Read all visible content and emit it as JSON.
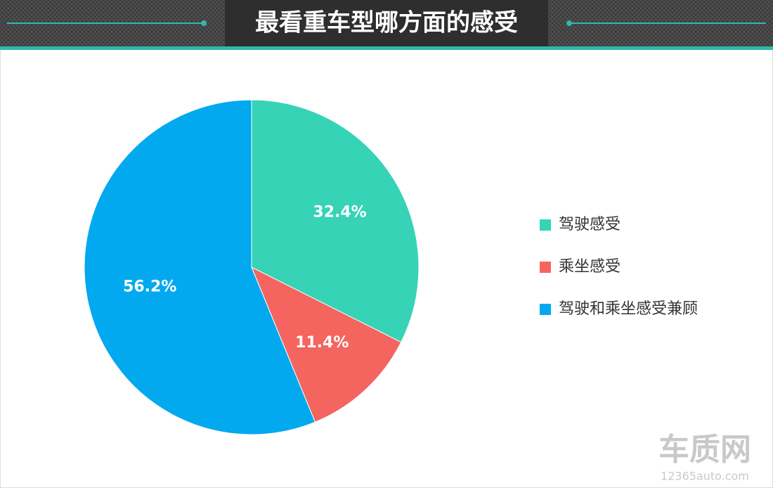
{
  "chart_data": {
    "type": "pie",
    "title": "最看重车型哪方面的感受",
    "categories": [
      "驾驶感受",
      "乘坐感受",
      "驾驶和乘坐感受兼顾"
    ],
    "values": [
      32.4,
      11.4,
      56.2
    ],
    "value_labels": [
      "32.4%",
      "11.4%",
      "56.2%"
    ],
    "colors": [
      "#36d3b7",
      "#f4655f",
      "#03a9ef"
    ],
    "legend": "right"
  },
  "watermark": {
    "logo": "车质网",
    "url": "12365auto.com"
  }
}
